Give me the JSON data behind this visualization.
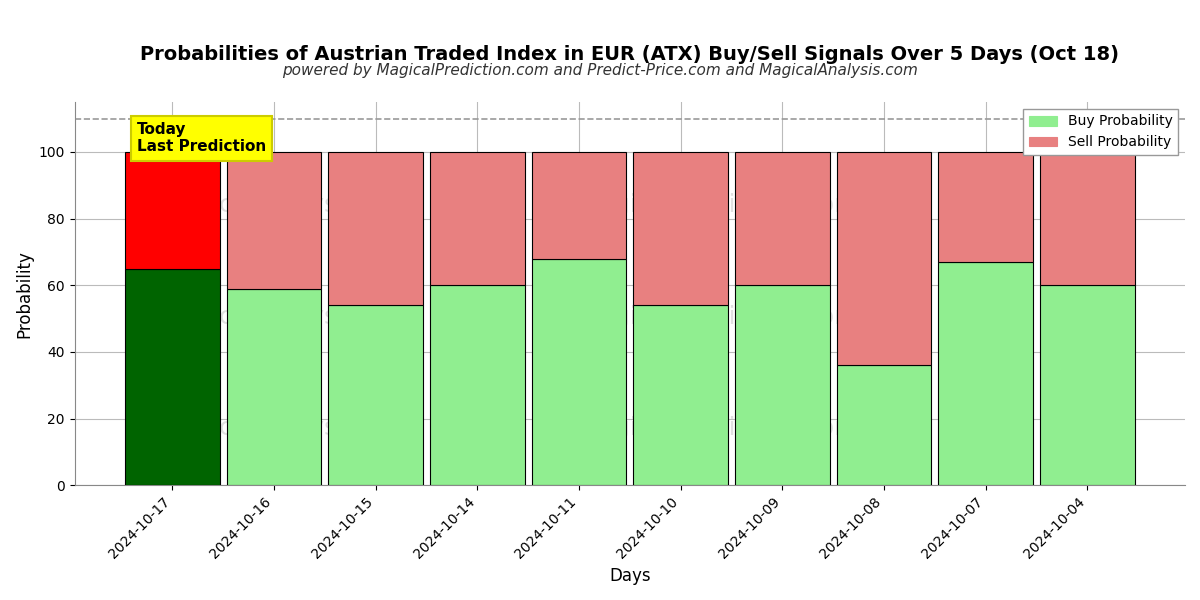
{
  "title": "Probabilities of Austrian Traded Index in EUR (ATX) Buy/Sell Signals Over 5 Days (Oct 18)",
  "subtitle": "powered by MagicalPrediction.com and Predict-Price.com and MagicalAnalysis.com",
  "xlabel": "Days",
  "ylabel": "Probability",
  "dates": [
    "2024-10-17",
    "2024-10-16",
    "2024-10-15",
    "2024-10-14",
    "2024-10-11",
    "2024-10-10",
    "2024-10-09",
    "2024-10-08",
    "2024-10-07",
    "2024-10-04"
  ],
  "buy_probs": [
    65,
    59,
    54,
    60,
    68,
    54,
    60,
    36,
    67,
    60
  ],
  "sell_probs": [
    35,
    41,
    46,
    40,
    32,
    46,
    40,
    64,
    33,
    40
  ],
  "today_buy_color": "#006400",
  "today_sell_color": "#FF0000",
  "buy_color": "#90EE90",
  "sell_color": "#E88080",
  "bar_edge_color": "#000000",
  "ylim": [
    0,
    115
  ],
  "dashed_line_y": 110,
  "watermark_lines": [
    [
      "calAnalysis.com",
      "MagicalPrediction.com"
    ],
    [
      "calAnalysis.com",
      "MagicalPrediction.com"
    ],
    [
      "calAnalysis.com",
      "MagicalPrediction.com"
    ]
  ],
  "background_color": "#ffffff",
  "grid_color": "#bbbbbb",
  "title_fontsize": 14,
  "subtitle_fontsize": 11,
  "axis_label_fontsize": 12,
  "tick_fontsize": 10,
  "legend_fontsize": 10,
  "today_annotation_text": "Today\nLast Prediction",
  "today_annotation_bg": "#FFFF00"
}
